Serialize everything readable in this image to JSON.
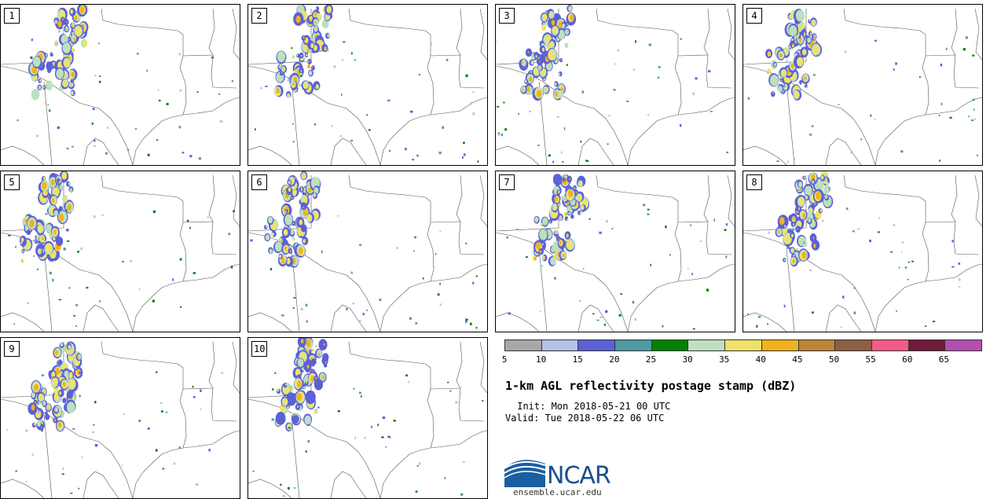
{
  "title": "1-km AGL reflectivity postage stamp (dBZ)",
  "init": " Init: Mon 2018-05-21 00 UTC",
  "valid": "Valid: Tue 2018-05-22 06 UTC",
  "logo": {
    "name": "NCAR",
    "url": "ensemble.ucar.edu"
  },
  "members": [
    "1",
    "2",
    "3",
    "4",
    "5",
    "6",
    "7",
    "8",
    "9",
    "10"
  ],
  "colorbar": {
    "colors": [
      "#a8a8a8",
      "#b6c1ea",
      "#5b61d6",
      "#4d9aa0",
      "#038003",
      "#bde0bf",
      "#efe269",
      "#f1b21c",
      "#bf8435",
      "#8d5e45",
      "#f25d86",
      "#6f1a3a",
      "#b44fb0"
    ],
    "ticks": [
      "5",
      "10",
      "15",
      "20",
      "25",
      "30",
      "35",
      "40",
      "45",
      "50",
      "55",
      "60",
      "65"
    ]
  }
}
